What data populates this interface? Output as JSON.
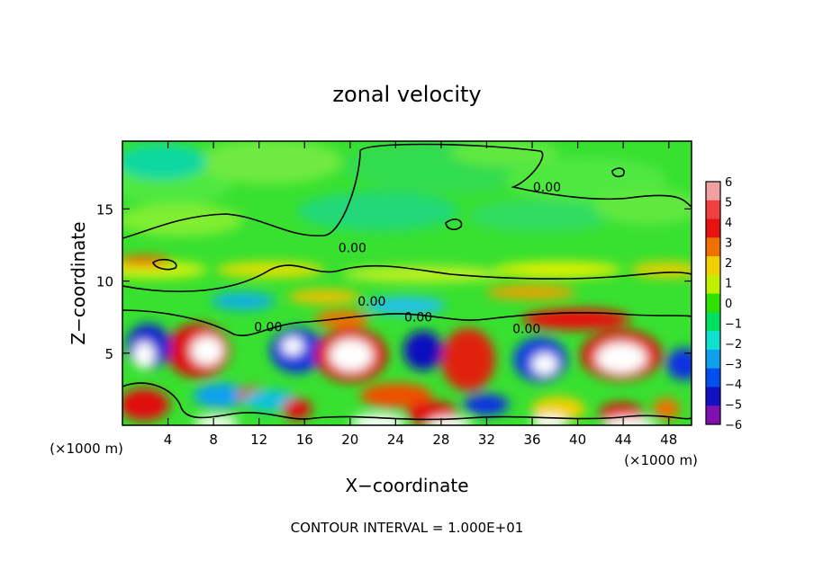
{
  "chart_data": {
    "type": "heatmap",
    "title": "zonal velocity",
    "xlabel": "X−coordinate",
    "ylabel": "Z−coordinate",
    "x_unit_left": "(×1000 m)",
    "x_unit_right": "(×1000 m)",
    "xlim": [
      0,
      50
    ],
    "ylim": [
      0,
      19.7
    ],
    "x_ticks": [
      4,
      8,
      12,
      16,
      20,
      24,
      28,
      32,
      36,
      40,
      44,
      48
    ],
    "x_tick_labels": [
      "4",
      "8",
      "12",
      "16",
      "20",
      "24",
      "28",
      "32",
      "36",
      "40",
      "44",
      "48"
    ],
    "y_ticks": [
      5,
      10,
      15
    ],
    "y_tick_labels": [
      "5",
      "10",
      "15"
    ],
    "colorbar": {
      "levels": [
        6,
        5,
        4,
        3,
        2,
        1,
        0,
        -1,
        -2,
        -3,
        -4,
        -5,
        -6
      ],
      "labels": [
        "6",
        "5",
        "4",
        "3",
        "2",
        "1",
        "0",
        "−1",
        "−2",
        "−3",
        "−4",
        "−5",
        "−6"
      ],
      "colors": [
        "#f0a0a0",
        "#f04040",
        "#e81010",
        "#f07000",
        "#f0d000",
        "#c0f000",
        "#30e000",
        "#00e060",
        "#10e0d0",
        "#10a0f0",
        "#0050f0",
        "#1010c0",
        "#8010b0"
      ]
    },
    "contour_labels": [
      {
        "text": "0.00",
        "x": 37.3,
        "y": 16.2
      },
      {
        "text": "0.00",
        "x": 20.2,
        "y": 12.0
      },
      {
        "text": "0.00",
        "x": 21.9,
        "y": 8.3
      },
      {
        "text": "0.00",
        "x": 26.0,
        "y": 7.2
      },
      {
        "text": "0.00",
        "x": 12.8,
        "y": 6.5
      },
      {
        "text": "0.00",
        "x": 35.5,
        "y": 6.4
      }
    ],
    "footer": "CONTOUR INTERVAL = 1.000E+01"
  }
}
